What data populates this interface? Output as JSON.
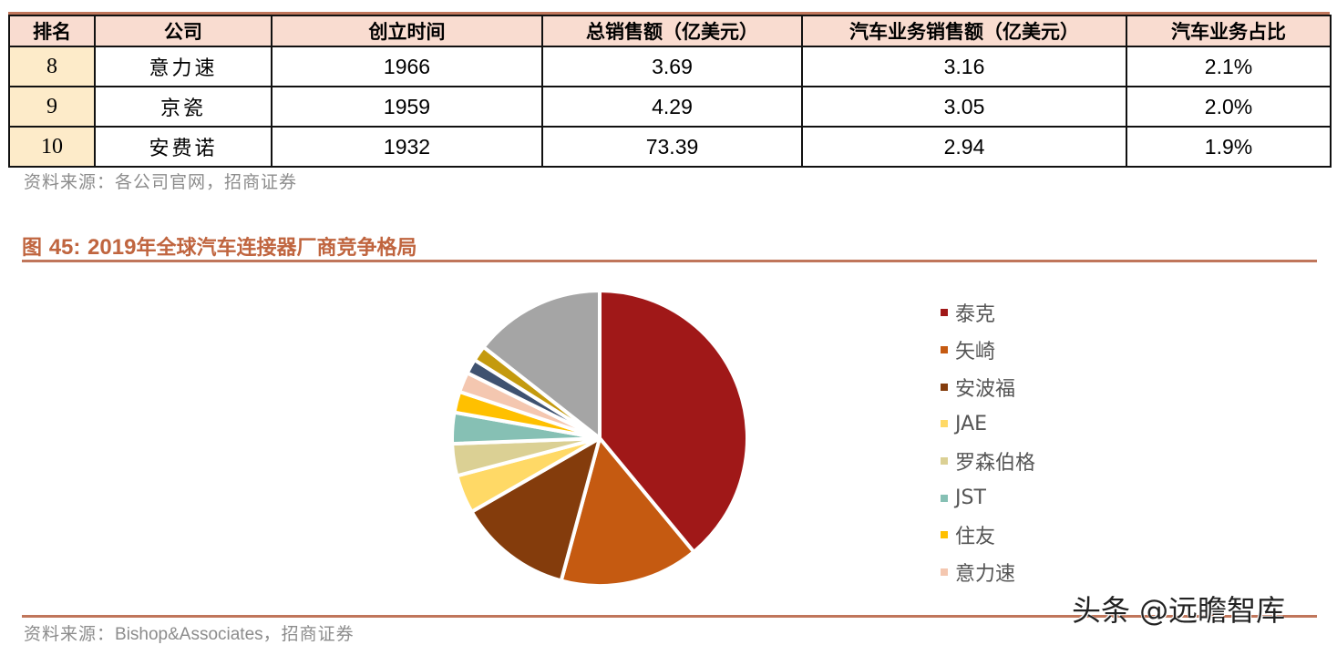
{
  "table": {
    "headers": [
      "排名",
      "公司",
      "创立时间",
      "总销售额（亿美元）",
      "汽车业务销售额（亿美元）",
      "汽车业务占比"
    ],
    "rows": [
      {
        "rank": "8",
        "company": "意力速",
        "founded": "1966",
        "total_sales": "3.69",
        "auto_sales": "3.16",
        "auto_share": "2.1%"
      },
      {
        "rank": "9",
        "company": "京瓷",
        "founded": "1959",
        "total_sales": "4.29",
        "auto_sales": "3.05",
        "auto_share": "2.0%"
      },
      {
        "rank": "10",
        "company": "安费诺",
        "founded": "1932",
        "total_sales": "73.39",
        "auto_sales": "2.94",
        "auto_share": "1.9%"
      }
    ],
    "source": "资料来源：各公司官网，招商证券"
  },
  "figure": {
    "prefix": "图",
    "number": "45:",
    "year": "2019",
    "title_rest": "年全球汽车连接器厂商竞争格局",
    "source_cn_prefix": "资料来源：",
    "source_latin": "Bishop&Associates",
    "source_cn_suffix": "，招商证券"
  },
  "watermark": "头条 @远瞻智库",
  "chart_data": {
    "type": "pie",
    "title": "2019年全球汽车连接器厂商竞争格局",
    "start_angle_deg": 0,
    "direction": "clockwise",
    "legend_position": "right",
    "data_labels": false,
    "series": [
      {
        "name": "泰克",
        "value": 39.0,
        "color": "#a01818"
      },
      {
        "name": "矢崎",
        "value": 15.2,
        "color": "#c55a11"
      },
      {
        "name": "安波福",
        "value": 12.5,
        "color": "#843c0c"
      },
      {
        "name": "JAE",
        "value": 4.2,
        "color": "#ffd966"
      },
      {
        "name": "罗森伯格",
        "value": 3.5,
        "color": "#dbd094"
      },
      {
        "name": "JST",
        "value": 3.4,
        "color": "#86c0b4"
      },
      {
        "name": "住友",
        "value": 2.3,
        "color": "#ffc000"
      },
      {
        "name": "意力速",
        "value": 2.2,
        "color": "#f4c7b0"
      },
      {
        "name": "",
        "value": 1.6,
        "color": "#3f5270"
      },
      {
        "name": "",
        "value": 1.7,
        "color": "#c49a0e"
      },
      {
        "name": "",
        "value": 14.4,
        "color": "#a5a5a5"
      }
    ],
    "legend_entries": [
      "泰克",
      "矢崎",
      "安波福",
      "JAE",
      "罗森伯格",
      "JST",
      "住友",
      "意力速"
    ]
  }
}
